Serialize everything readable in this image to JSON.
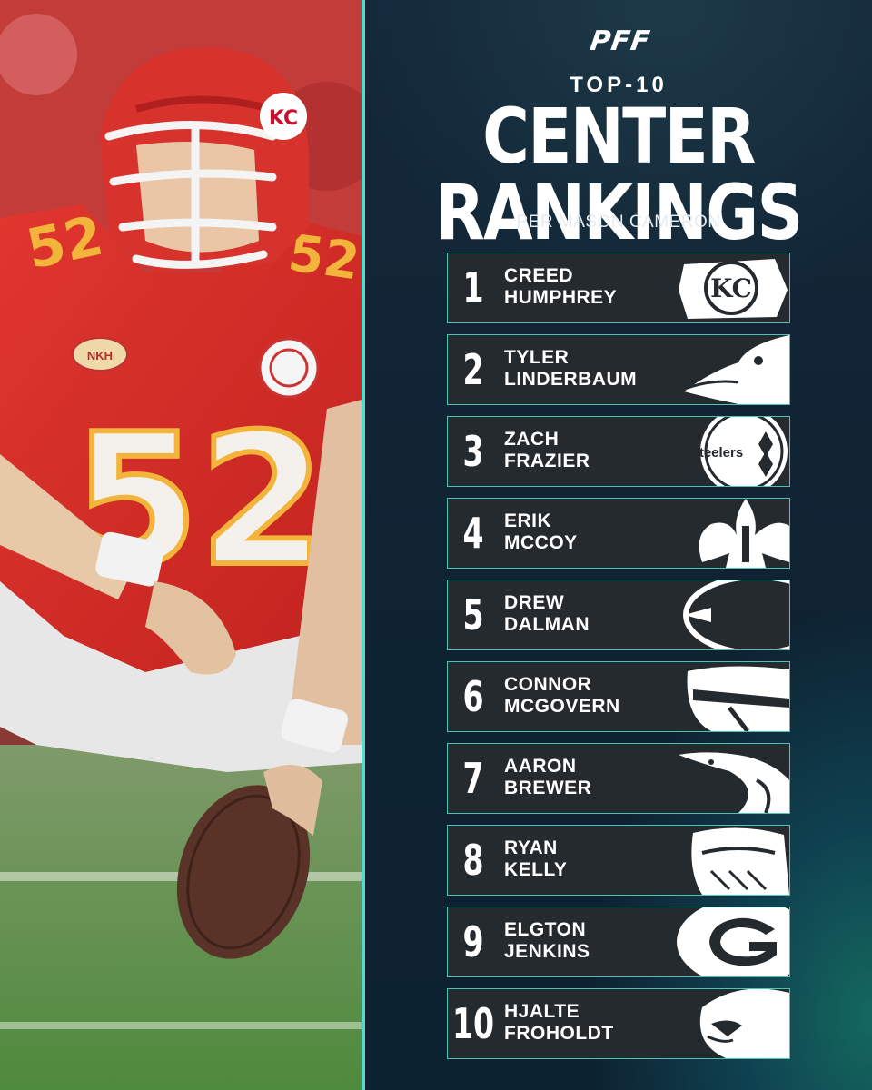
{
  "brand": "PFF",
  "header": {
    "top_label": "TOP-10",
    "title": "CENTER RANKINGS",
    "subtitle": "PER MASON CAMERON"
  },
  "photo": {
    "jersey_number": "52",
    "helmet_logo_text": "KC",
    "patch_left": "NKH"
  },
  "rankings": [
    {
      "rank": "1",
      "first": "CREED",
      "last": "HUMPHREY",
      "team_icon": "chiefs-logo-icon"
    },
    {
      "rank": "2",
      "first": "TYLER",
      "last": "LINDERBAUM",
      "team_icon": "ravens-logo-icon"
    },
    {
      "rank": "3",
      "first": "ZACH",
      "last": "FRAZIER",
      "team_icon": "steelers-logo-icon",
      "logo_text": "Steelers"
    },
    {
      "rank": "4",
      "first": "ERIK",
      "last": "MCCOY",
      "team_icon": "saints-logo-icon"
    },
    {
      "rank": "5",
      "first": "DREW",
      "last": "DALMAN",
      "team_icon": "bears-logo-icon"
    },
    {
      "rank": "6",
      "first": "CONNOR",
      "last": "MCGOVERN",
      "team_icon": "bills-logo-icon"
    },
    {
      "rank": "7",
      "first": "AARON",
      "last": "BREWER",
      "team_icon": "dolphins-logo-icon"
    },
    {
      "rank": "8",
      "first": "RYAN",
      "last": "KELLY",
      "team_icon": "vikings-logo-icon"
    },
    {
      "rank": "9",
      "first": "ELGTON",
      "last": "JENKINS",
      "team_icon": "packers-logo-icon"
    },
    {
      "rank": "10",
      "first": "HJALTE",
      "last": "FROHOLDT",
      "team_icon": "cardinals-logo-icon"
    }
  ],
  "colors": {
    "accent": "#5fd6c7",
    "card_bg": "#252a2e",
    "jersey_red": "#d9302c",
    "number_gold": "#f2b43a"
  }
}
